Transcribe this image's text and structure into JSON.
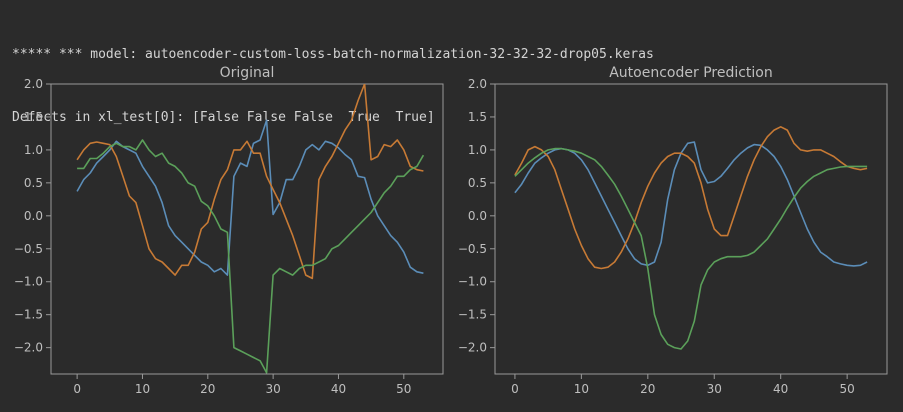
{
  "console": {
    "line1": "***** *** model: autoencoder-custom-loss-batch-normalization-32-32-32-drop05.keras",
    "line2": "Defects in xl_test[0]: [False False False  True  True]"
  },
  "colors": {
    "background": "#2b2b2b",
    "axes": "#9a9a9a",
    "text": "#bfbfbf",
    "series_blue": "#5b8db8",
    "series_orange": "#c77a35",
    "series_green": "#5ba05a"
  },
  "chart_data": [
    {
      "type": "line",
      "title": "Original",
      "xlabel": "",
      "ylabel": "",
      "xlim": [
        -4,
        56
      ],
      "ylim": [
        -2.4,
        2.0
      ],
      "xticks": [
        "0",
        "10",
        "20",
        "30",
        "40",
        "50"
      ],
      "yticks": [
        "2.0",
        "1.5",
        "1.0",
        "0.5",
        "0.0",
        "−1.0",
        "−1.5",
        "−2.0"
      ],
      "ytick_values": [
        2.0,
        1.5,
        1.0,
        0.5,
        0.0,
        -1.0,
        -1.5,
        -2.0
      ],
      "extra_ytick": {
        "label": "−0.5",
        "value": -0.5
      },
      "grid": false,
      "x": [
        0,
        1,
        2,
        3,
        4,
        5,
        6,
        7,
        8,
        9,
        10,
        11,
        12,
        13,
        14,
        15,
        16,
        17,
        18,
        19,
        20,
        21,
        22,
        23,
        24,
        25,
        26,
        27,
        28,
        29,
        30,
        31,
        32,
        33,
        34,
        35,
        36,
        37,
        38,
        39,
        40,
        41,
        42,
        43,
        44,
        45,
        46,
        47,
        48,
        49,
        50,
        51,
        52,
        53
      ],
      "series": [
        {
          "color": "#5b8db8",
          "values": [
            0.37,
            0.55,
            0.65,
            0.8,
            0.9,
            1.0,
            1.13,
            1.05,
            1.0,
            0.95,
            0.75,
            0.6,
            0.45,
            0.2,
            -0.15,
            -0.3,
            -0.4,
            -0.5,
            -0.6,
            -0.7,
            -0.75,
            -0.85,
            -0.8,
            -0.9,
            0.6,
            0.8,
            0.75,
            1.1,
            1.15,
            1.45,
            0.02,
            0.2,
            0.55,
            0.55,
            0.75,
            1.0,
            1.08,
            1.0,
            1.13,
            1.1,
            1.03,
            0.93,
            0.85,
            0.6,
            0.58,
            0.25,
            0.0,
            -0.15,
            -0.3,
            -0.4,
            -0.55,
            -0.78,
            -0.85,
            -0.87
          ]
        },
        {
          "color": "#c77a35",
          "values": [
            0.85,
            1.0,
            1.1,
            1.12,
            1.1,
            1.08,
            0.9,
            0.6,
            0.3,
            0.2,
            -0.15,
            -0.5,
            -0.65,
            -0.7,
            -0.8,
            -0.9,
            -0.75,
            -0.75,
            -0.55,
            -0.2,
            -0.1,
            0.25,
            0.55,
            0.7,
            1.0,
            1.0,
            1.13,
            0.95,
            0.95,
            0.6,
            0.4,
            0.2,
            -0.05,
            -0.3,
            -0.6,
            -0.9,
            -0.95,
            0.55,
            0.75,
            0.9,
            1.1,
            1.3,
            1.45,
            1.75,
            2.0,
            0.85,
            0.9,
            1.08,
            1.05,
            1.15,
            1.0,
            0.75,
            0.7,
            0.68
          ]
        },
        {
          "color": "#5ba05a",
          "values": [
            0.72,
            0.72,
            0.87,
            0.87,
            0.95,
            1.05,
            1.1,
            1.05,
            1.05,
            1.0,
            1.15,
            1.0,
            0.9,
            0.95,
            0.8,
            0.75,
            0.65,
            0.5,
            0.45,
            0.22,
            0.15,
            0.0,
            -0.2,
            -0.25,
            -2.0,
            -2.05,
            -2.1,
            -2.15,
            -2.2,
            -2.38,
            -0.9,
            -0.8,
            -0.85,
            -0.9,
            -0.8,
            -0.75,
            -0.75,
            -0.7,
            -0.65,
            -0.5,
            -0.45,
            -0.35,
            -0.25,
            -0.15,
            -0.05,
            0.05,
            0.2,
            0.35,
            0.45,
            0.6,
            0.6,
            0.7,
            0.75,
            0.92
          ]
        }
      ]
    },
    {
      "type": "line",
      "title": "Autoencoder Prediction",
      "xlabel": "",
      "ylabel": "",
      "xlim": [
        -3,
        56
      ],
      "ylim": [
        -2.4,
        2.0
      ],
      "xticks": [
        "0",
        "10",
        "20",
        "30",
        "40",
        "50"
      ],
      "yticks": [
        "2.0",
        "1.5",
        "1.0",
        "0.5",
        "0.0",
        "−1.0",
        "−1.5",
        "−2.0"
      ],
      "ytick_values": [
        2.0,
        1.5,
        1.0,
        0.5,
        0.0,
        -1.0,
        -1.5,
        -2.0
      ],
      "extra_ytick": {
        "label": "−0.5",
        "value": -0.5
      },
      "grid": false,
      "x": [
        0,
        1,
        2,
        3,
        4,
        5,
        6,
        7,
        8,
        9,
        10,
        11,
        12,
        13,
        14,
        15,
        16,
        17,
        18,
        19,
        20,
        21,
        22,
        23,
        24,
        25,
        26,
        27,
        28,
        29,
        30,
        31,
        32,
        33,
        34,
        35,
        36,
        37,
        38,
        39,
        40,
        41,
        42,
        43,
        44,
        45,
        46,
        47,
        48,
        49,
        50,
        51,
        52,
        53
      ],
      "series": [
        {
          "color": "#5b8db8",
          "values": [
            0.35,
            0.48,
            0.65,
            0.8,
            0.88,
            0.95,
            1.0,
            1.02,
            1.0,
            0.95,
            0.85,
            0.7,
            0.5,
            0.3,
            0.1,
            -0.1,
            -0.3,
            -0.5,
            -0.65,
            -0.73,
            -0.75,
            -0.7,
            -0.4,
            0.25,
            0.7,
            0.95,
            1.1,
            1.12,
            0.7,
            0.5,
            0.52,
            0.6,
            0.72,
            0.85,
            0.95,
            1.03,
            1.08,
            1.07,
            1.0,
            0.9,
            0.75,
            0.55,
            0.3,
            0.05,
            -0.2,
            -0.4,
            -0.55,
            -0.62,
            -0.7,
            -0.73,
            -0.75,
            -0.76,
            -0.75,
            -0.7
          ]
        },
        {
          "color": "#c77a35",
          "values": [
            0.62,
            0.8,
            1.0,
            1.05,
            1.0,
            0.9,
            0.7,
            0.4,
            0.1,
            -0.2,
            -0.45,
            -0.65,
            -0.78,
            -0.8,
            -0.78,
            -0.7,
            -0.55,
            -0.35,
            -0.1,
            0.2,
            0.45,
            0.65,
            0.8,
            0.9,
            0.95,
            0.95,
            0.9,
            0.8,
            0.5,
            0.1,
            -0.2,
            -0.3,
            -0.3,
            0.0,
            0.3,
            0.6,
            0.85,
            1.05,
            1.2,
            1.3,
            1.35,
            1.3,
            1.1,
            1.0,
            0.98,
            1.0,
            1.0,
            0.95,
            0.9,
            0.82,
            0.75,
            0.72,
            0.7,
            0.72
          ]
        },
        {
          "color": "#5ba05a",
          "values": [
            0.6,
            0.7,
            0.8,
            0.88,
            0.95,
            1.0,
            1.02,
            1.02,
            1.0,
            0.98,
            0.95,
            0.9,
            0.85,
            0.75,
            0.62,
            0.48,
            0.3,
            0.1,
            -0.1,
            -0.3,
            -0.8,
            -1.5,
            -1.8,
            -1.95,
            -2.0,
            -2.02,
            -1.9,
            -1.6,
            -1.05,
            -0.82,
            -0.7,
            -0.65,
            -0.62,
            -0.62,
            -0.62,
            -0.6,
            -0.55,
            -0.45,
            -0.35,
            -0.2,
            -0.05,
            0.12,
            0.28,
            0.42,
            0.52,
            0.6,
            0.65,
            0.7,
            0.72,
            0.74,
            0.75,
            0.75,
            0.75,
            0.75
          ]
        }
      ]
    }
  ]
}
